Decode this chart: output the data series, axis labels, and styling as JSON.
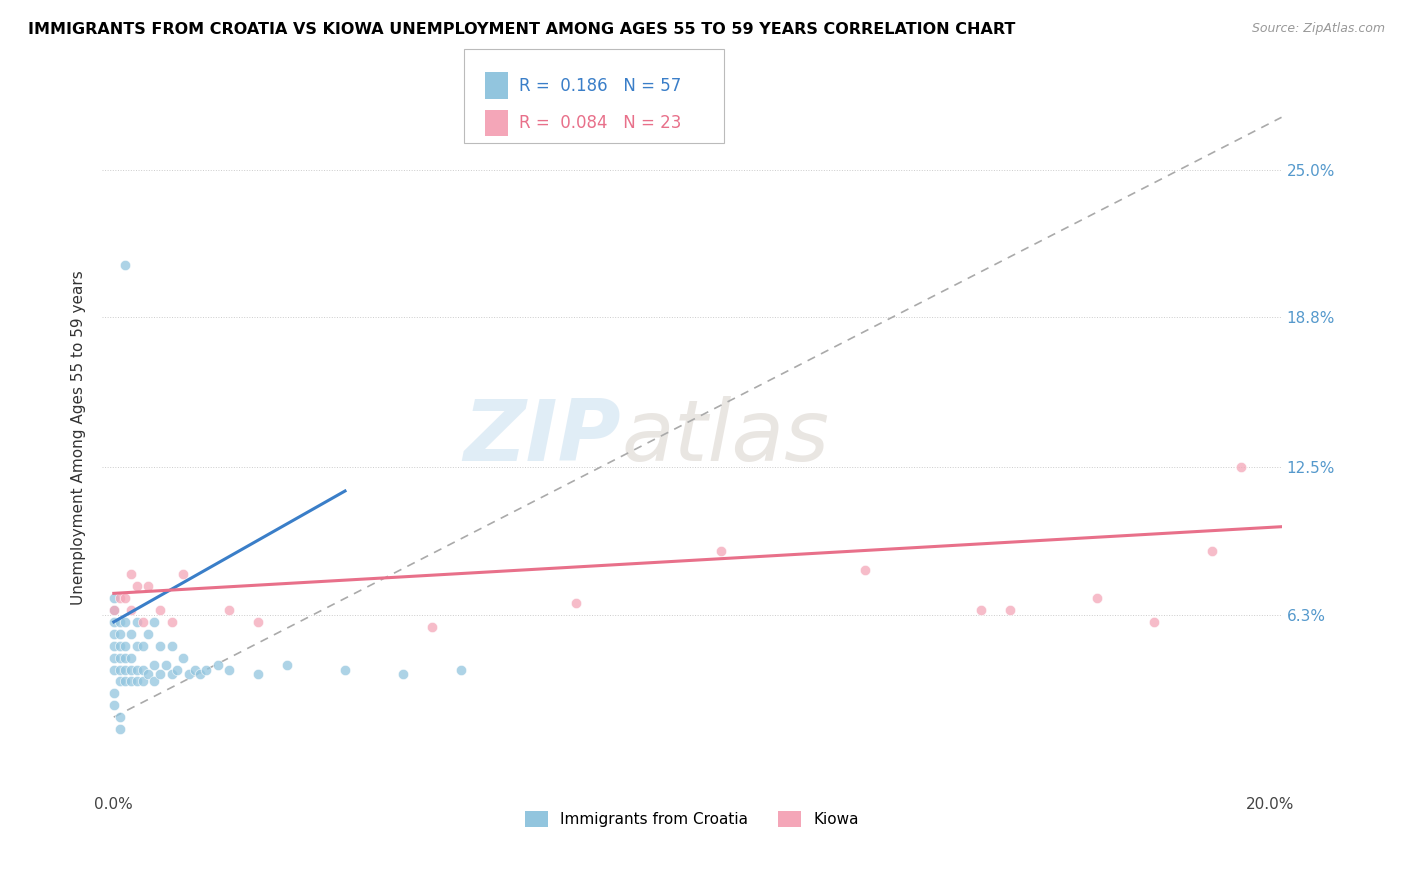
{
  "title": "IMMIGRANTS FROM CROATIA VS KIOWA UNEMPLOYMENT AMONG AGES 55 TO 59 YEARS CORRELATION CHART",
  "source": "Source: ZipAtlas.com",
  "ylabel": "Unemployment Among Ages 55 to 59 years",
  "xlim": [
    -0.002,
    0.202
  ],
  "ylim": [
    -0.01,
    0.285
  ],
  "xtick_labels": [
    "0.0%",
    "20.0%"
  ],
  "ytick_labels": [
    "6.3%",
    "12.5%",
    "18.8%",
    "25.0%"
  ],
  "ytick_values": [
    0.063,
    0.125,
    0.188,
    0.25
  ],
  "xtick_values": [
    0.0,
    0.2
  ],
  "blue_color": "#92c5de",
  "pink_color": "#f4a6b8",
  "legend_blue_R_val": "0.186",
  "legend_blue_N_val": "57",
  "legend_pink_R_val": "0.084",
  "legend_pink_N_val": "23",
  "watermark_zip": "ZIP",
  "watermark_atlas": "atlas",
  "legend1_label": "Immigrants from Croatia",
  "legend2_label": "Kiowa",
  "blue_line_x": [
    0.0,
    0.04
  ],
  "blue_line_y": [
    0.06,
    0.115
  ],
  "pink_line_x": [
    0.0,
    0.202
  ],
  "pink_line_y": [
    0.072,
    0.1
  ],
  "trend_line_x": [
    0.0,
    0.202
  ],
  "trend_line_y": [
    0.02,
    0.272
  ],
  "blue_scatter_x": [
    0.0,
    0.0,
    0.0,
    0.0,
    0.0,
    0.0,
    0.0,
    0.0,
    0.0,
    0.001,
    0.001,
    0.001,
    0.001,
    0.001,
    0.001,
    0.001,
    0.001,
    0.002,
    0.002,
    0.002,
    0.002,
    0.002,
    0.003,
    0.003,
    0.003,
    0.003,
    0.004,
    0.004,
    0.004,
    0.004,
    0.005,
    0.005,
    0.005,
    0.006,
    0.006,
    0.007,
    0.007,
    0.007,
    0.008,
    0.008,
    0.009,
    0.01,
    0.01,
    0.011,
    0.012,
    0.013,
    0.014,
    0.015,
    0.016,
    0.018,
    0.02,
    0.025,
    0.03,
    0.04,
    0.05,
    0.06,
    0.002
  ],
  "blue_scatter_y": [
    0.04,
    0.045,
    0.05,
    0.055,
    0.06,
    0.065,
    0.07,
    0.03,
    0.025,
    0.035,
    0.04,
    0.045,
    0.05,
    0.055,
    0.06,
    0.02,
    0.015,
    0.035,
    0.04,
    0.045,
    0.05,
    0.06,
    0.035,
    0.04,
    0.045,
    0.055,
    0.035,
    0.04,
    0.05,
    0.06,
    0.035,
    0.04,
    0.05,
    0.038,
    0.055,
    0.035,
    0.042,
    0.06,
    0.038,
    0.05,
    0.042,
    0.038,
    0.05,
    0.04,
    0.045,
    0.038,
    0.04,
    0.038,
    0.04,
    0.042,
    0.04,
    0.038,
    0.042,
    0.04,
    0.038,
    0.04,
    0.21
  ],
  "pink_scatter_x": [
    0.0,
    0.001,
    0.002,
    0.003,
    0.003,
    0.004,
    0.005,
    0.006,
    0.008,
    0.01,
    0.012,
    0.02,
    0.025,
    0.055,
    0.08,
    0.105,
    0.13,
    0.155,
    0.17,
    0.18,
    0.19,
    0.195,
    0.15
  ],
  "pink_scatter_y": [
    0.065,
    0.07,
    0.07,
    0.065,
    0.08,
    0.075,
    0.06,
    0.075,
    0.065,
    0.06,
    0.08,
    0.065,
    0.06,
    0.058,
    0.068,
    0.09,
    0.082,
    0.065,
    0.07,
    0.06,
    0.09,
    0.125,
    0.065
  ]
}
